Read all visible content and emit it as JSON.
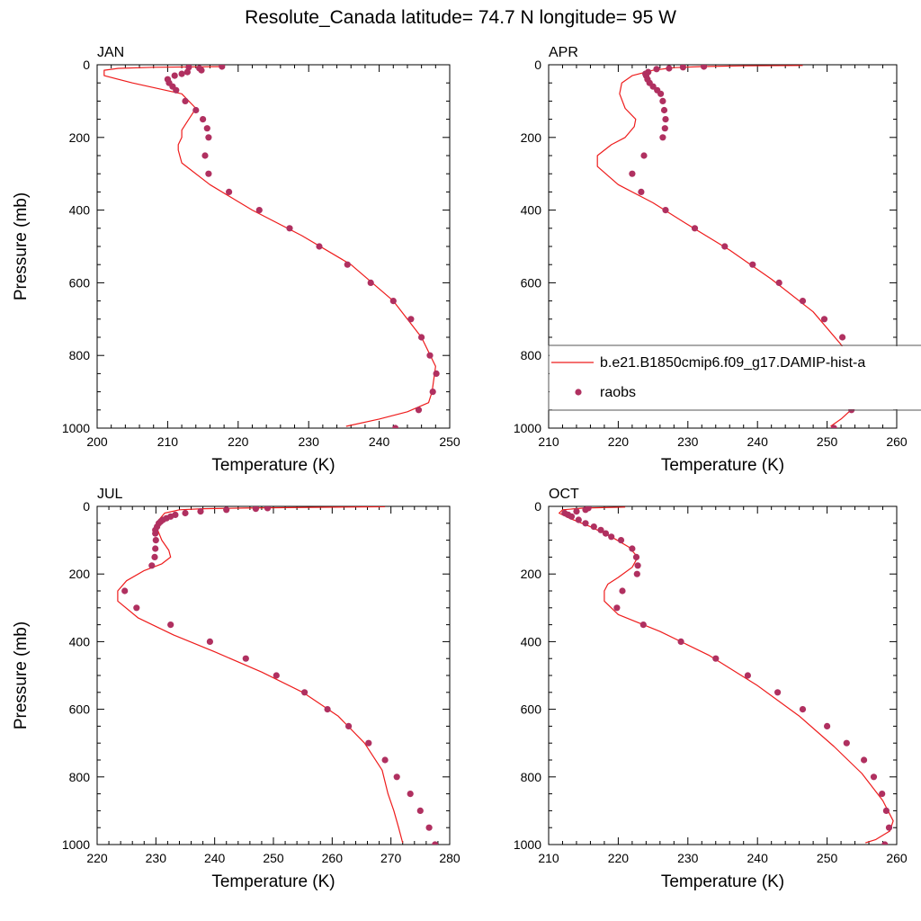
{
  "figure": {
    "title": "Resolute_Canada  latitude= 74.7 N longitude= 95 W"
  },
  "legend": {
    "model_label": "b.e21.B1850cmip6.f09_g17.DAMIP-hist-a",
    "obs_label": "raobs",
    "placement": "inside APR panel, lower area"
  },
  "colors": {
    "model_line": "#ee1c1c",
    "obs_marker": "#b03060"
  },
  "chart_data": [
    {
      "type": "scatter",
      "panel_label": "JAN",
      "xlabel": "Temperature (K)",
      "ylabel": "Pressure (mb)",
      "xlim": [
        200,
        250
      ],
      "ylim": [
        1000,
        0
      ],
      "xticks": [
        200,
        210,
        220,
        230,
        240,
        250
      ],
      "yticks": [
        0,
        200,
        400,
        600,
        800,
        1000
      ],
      "show_ylabel": true,
      "grid": false,
      "series": [
        {
          "name": "b.e21.B1850cmip6.f09_g17.DAMIP-hist-a",
          "kind": "line",
          "x": [
            218,
            208,
            203,
            201,
            201,
            205,
            212,
            214,
            213,
            212,
            212,
            211.5,
            211.5,
            212,
            216,
            222,
            229,
            236,
            242,
            246,
            248,
            247.5,
            247,
            244,
            240,
            235.3
          ],
          "y": [
            5,
            7,
            10,
            15,
            30,
            50,
            80,
            120,
            150,
            180,
            200,
            220,
            235,
            270,
            330,
            400,
            470,
            550,
            650,
            750,
            830,
            900,
            930,
            955,
            975,
            995
          ]
        },
        {
          "name": "raobs",
          "kind": "scatter",
          "x": [
            217.7,
            214.5,
            214.8,
            213,
            212.8,
            212,
            211,
            210,
            210.2,
            210.7,
            211.2,
            212.5,
            214,
            215,
            215.6,
            215.8,
            215.3,
            215.8,
            218.7,
            223,
            227.3,
            231.5,
            235.5,
            238.8,
            242,
            244.5,
            246,
            247.2,
            248.1,
            247.6,
            245.6,
            242.3
          ],
          "y": [
            5,
            10,
            15,
            7,
            20,
            25,
            30,
            40,
            50,
            60,
            70,
            100,
            125,
            150,
            175,
            200,
            250,
            300,
            350,
            400,
            450,
            500,
            550,
            600,
            650,
            700,
            750,
            800,
            850,
            900,
            950,
            1000
          ]
        }
      ]
    },
    {
      "type": "scatter",
      "panel_label": "APR",
      "xlabel": "Temperature (K)",
      "ylabel": "",
      "xlim": [
        210,
        260
      ],
      "ylim": [
        1000,
        0
      ],
      "xticks": [
        210,
        220,
        230,
        240,
        250,
        260
      ],
      "yticks": [
        0,
        200,
        400,
        600,
        800,
        1000
      ],
      "show_ylabel": false,
      "grid": false,
      "series": [
        {
          "name": "b.e21.B1850cmip6.f09_g17.DAMIP-hist-a",
          "kind": "line",
          "x": [
            246.5,
            238,
            232,
            228,
            225,
            222,
            220.5,
            220.2,
            221,
            222.5,
            222.3,
            221,
            219,
            217,
            217,
            220,
            225,
            230,
            236,
            242,
            248,
            252,
            254.5,
            255,
            254,
            252,
            250.5
          ],
          "y": [
            2,
            3,
            5,
            8,
            15,
            30,
            50,
            80,
            120,
            150,
            170,
            200,
            220,
            250,
            280,
            330,
            380,
            440,
            510,
            590,
            680,
            770,
            850,
            900,
            940,
            975,
            995
          ]
        },
        {
          "name": "raobs",
          "kind": "scatter",
          "x": [
            232.3,
            229.3,
            227.3,
            225.5,
            224.3,
            223.9,
            224,
            224.2,
            224.5,
            225,
            225.6,
            226.1,
            226.4,
            226.6,
            226.8,
            226.7,
            226.4,
            223.7,
            222,
            223.3,
            226.8,
            231,
            235.3,
            239.3,
            243.1,
            246.5,
            249.6,
            252.2,
            253.4,
            254.3,
            254.5,
            253.5,
            251
          ],
          "y": [
            5,
            7,
            10,
            12,
            20,
            25,
            30,
            40,
            50,
            60,
            70,
            80,
            100,
            125,
            150,
            175,
            200,
            250,
            300,
            350,
            400,
            450,
            500,
            550,
            600,
            650,
            700,
            750,
            800,
            850,
            900,
            950,
            1000
          ]
        }
      ]
    },
    {
      "type": "scatter",
      "panel_label": "JUL",
      "xlabel": "Temperature (K)",
      "ylabel": "Pressure (mb)",
      "xlim": [
        220,
        280
      ],
      "ylim": [
        1000,
        0
      ],
      "xticks": [
        220,
        230,
        240,
        250,
        260,
        270,
        280
      ],
      "yticks": [
        0,
        200,
        400,
        600,
        800,
        1000
      ],
      "show_ylabel": true,
      "grid": false,
      "series": [
        {
          "name": "b.e21.B1850cmip6.f09_g17.DAMIP-hist-a",
          "kind": "line",
          "x": [
            269,
            256,
            245,
            238,
            234,
            231.5,
            230.5,
            230.3,
            231,
            232.2,
            232.5,
            231,
            228,
            225,
            223.5,
            223.5,
            227,
            233,
            240,
            248,
            255,
            261,
            265.5,
            268.5,
            269.5,
            270.5,
            271.3,
            272
          ],
          "y": [
            1,
            3,
            5,
            7,
            10,
            20,
            40,
            70,
            100,
            130,
            150,
            170,
            190,
            220,
            250,
            280,
            330,
            380,
            430,
            490,
            550,
            620,
            700,
            780,
            850,
            900,
            950,
            995
          ]
        },
        {
          "name": "raobs",
          "kind": "scatter",
          "x": [
            249,
            247,
            242,
            237.6,
            235,
            233.3,
            232.5,
            231.8,
            231.2,
            230.8,
            230.5,
            230.2,
            229.9,
            229.9,
            230,
            229.9,
            229.8,
            229.3,
            224.7,
            226.7,
            232.5,
            239.2,
            245.3,
            250.5,
            255.3,
            259.2,
            262.8,
            266.2,
            269,
            271,
            273.3,
            275,
            276.5,
            277.5
          ],
          "y": [
            5,
            7,
            10,
            15,
            20,
            25,
            30,
            35,
            40,
            45,
            50,
            60,
            70,
            80,
            100,
            125,
            150,
            175,
            250,
            300,
            350,
            400,
            450,
            500,
            550,
            600,
            650,
            700,
            750,
            800,
            850,
            900,
            950,
            1000
          ]
        }
      ]
    },
    {
      "type": "scatter",
      "panel_label": "OCT",
      "xlabel": "Temperature (K)",
      "ylabel": "",
      "xlim": [
        210,
        260
      ],
      "ylim": [
        1000,
        0
      ],
      "xticks": [
        210,
        220,
        230,
        240,
        250,
        260
      ],
      "yticks": [
        0,
        200,
        400,
        600,
        800,
        1000
      ],
      "show_ylabel": false,
      "grid": false,
      "series": [
        {
          "name": "b.e21.B1850cmip6.f09_g17.DAMIP-hist-a",
          "kind": "line",
          "x": [
            221,
            215,
            212,
            211.5,
            213,
            216,
            219,
            221.5,
            222.8,
            222,
            220,
            218.5,
            218,
            218,
            220,
            226,
            233,
            240,
            246,
            251,
            255,
            258,
            259.5,
            259,
            257,
            255.5
          ],
          "y": [
            2,
            5,
            10,
            20,
            35,
            60,
            90,
            120,
            150,
            180,
            210,
            230,
            250,
            280,
            320,
            370,
            440,
            530,
            620,
            710,
            790,
            870,
            930,
            960,
            985,
            995
          ]
        },
        {
          "name": "raobs",
          "kind": "scatter",
          "x": [
            215.7,
            215.3,
            214,
            212.3,
            212.8,
            213.3,
            214.3,
            215.3,
            216.5,
            217.5,
            218.2,
            219,
            220.4,
            222,
            222.6,
            222.8,
            222.7,
            220.6,
            219.8,
            223.6,
            229,
            234,
            238.6,
            242.9,
            246.5,
            250,
            252.8,
            255.3,
            256.7,
            257.9,
            258.5,
            258.9,
            258.3
          ],
          "y": [
            5,
            10,
            15,
            20,
            25,
            30,
            40,
            50,
            60,
            70,
            80,
            90,
            100,
            125,
            150,
            175,
            200,
            250,
            300,
            350,
            400,
            450,
            500,
            550,
            600,
            650,
            700,
            750,
            800,
            850,
            900,
            950,
            1000
          ]
        }
      ]
    }
  ]
}
